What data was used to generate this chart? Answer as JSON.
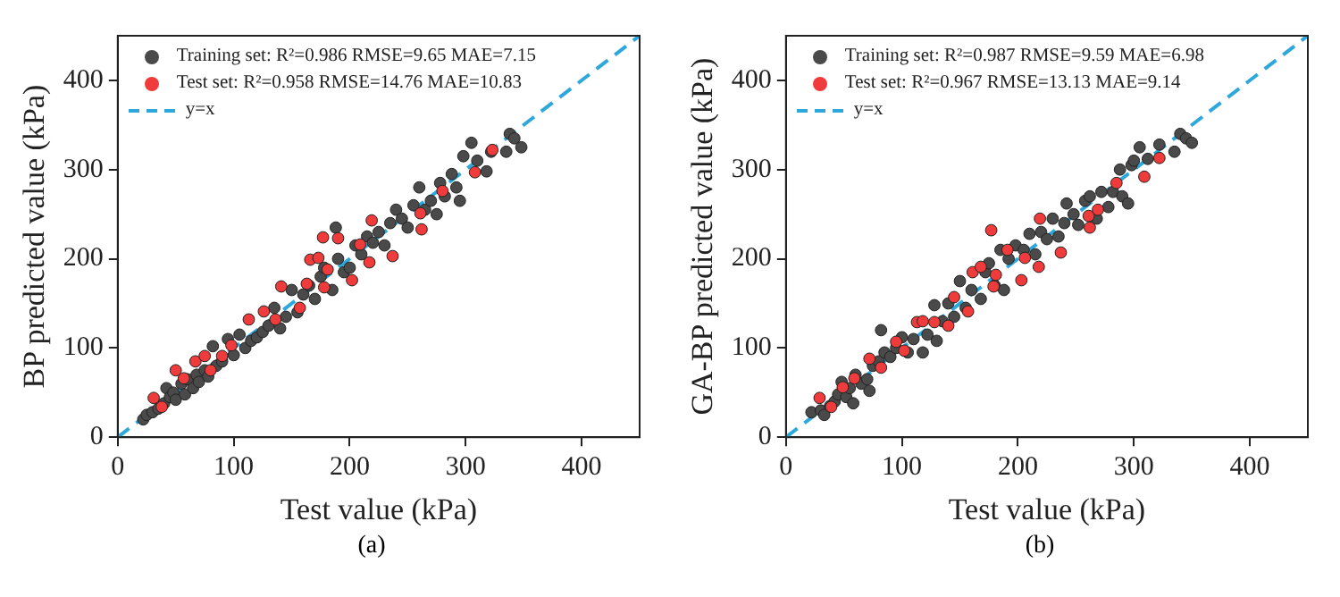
{
  "chart_data": [
    {
      "type": "scatter",
      "xlabel": "Test value (kPa)",
      "ylabel": "BP predicted value (kPa)",
      "xlim": [
        0,
        450
      ],
      "ylim": [
        0,
        450
      ],
      "xticks": [
        0,
        100,
        200,
        300,
        400
      ],
      "yticks": [
        0,
        100,
        200,
        300,
        400
      ],
      "grid": false,
      "legend": "top left",
      "annotations": [
        "(a)"
      ],
      "series": [
        {
          "name": "Training set: R²=0.986 RMSE=9.65 MAE=7.15",
          "marker": "circle",
          "color": "#4a4a4a",
          "x": [
            22,
            25,
            30,
            35,
            40,
            42,
            45,
            48,
            50,
            55,
            58,
            60,
            65,
            68,
            70,
            75,
            78,
            82,
            85,
            90,
            95,
            100,
            105,
            110,
            115,
            120,
            125,
            130,
            135,
            140,
            145,
            150,
            155,
            160,
            165,
            170,
            175,
            178,
            185,
            188,
            190,
            195,
            200,
            205,
            210,
            215,
            220,
            225,
            230,
            235,
            240,
            245,
            250,
            255,
            260,
            265,
            270,
            275,
            278,
            282,
            288,
            292,
            295,
            298,
            305,
            310,
            318,
            322,
            335,
            338,
            342,
            348
          ],
          "values": [
            20,
            25,
            28,
            32,
            38,
            55,
            45,
            50,
            42,
            60,
            48,
            65,
            55,
            70,
            62,
            75,
            68,
            102,
            80,
            85,
            110,
            92,
            115,
            100,
            108,
            112,
            118,
            125,
            145,
            122,
            135,
            165,
            140,
            160,
            170,
            155,
            180,
            190,
            165,
            235,
            200,
            185,
            190,
            215,
            205,
            225,
            218,
            230,
            215,
            240,
            255,
            245,
            235,
            260,
            280,
            255,
            265,
            250,
            285,
            270,
            295,
            280,
            265,
            315,
            330,
            310,
            298,
            320,
            320,
            340,
            335,
            325
          ]
        },
        {
          "name": "Test set: R²=0.958 RMSE=14.76 MAE=10.83",
          "marker": "circle",
          "color": "#ef3b3b",
          "x": [
            31,
            38,
            50,
            57,
            67,
            75,
            80,
            90,
            98,
            113,
            126,
            136,
            141,
            157,
            163,
            166,
            173,
            177,
            178,
            181,
            190,
            202,
            209,
            217,
            219,
            237,
            261,
            262,
            280,
            308,
            323
          ],
          "values": [
            44,
            34,
            75,
            66,
            85,
            91,
            75,
            91,
            103,
            132,
            141,
            132,
            169,
            145,
            172,
            199,
            201,
            224,
            168,
            188,
            223,
            176,
            216,
            196,
            243,
            203,
            251,
            233,
            276,
            297,
            322
          ]
        },
        {
          "name": "y=x",
          "type": "line",
          "color": "#2ea8dc",
          "line_style": "dashed",
          "x": [
            0,
            450
          ],
          "values": [
            0,
            450
          ]
        }
      ]
    },
    {
      "type": "scatter",
      "xlabel": "Test value (kPa)",
      "ylabel": "GA-BP predicted value (kPa)",
      "xlim": [
        0,
        450
      ],
      "ylim": [
        0,
        450
      ],
      "xticks": [
        0,
        100,
        200,
        300,
        400
      ],
      "yticks": [
        0,
        100,
        200,
        300,
        400
      ],
      "grid": false,
      "legend": "top left",
      "annotations": [
        "(b)"
      ],
      "series": [
        {
          "name": "Training set: R²=0.987 RMSE=9.59 MAE=6.98",
          "marker": "circle",
          "color": "#4a4a4a",
          "x": [
            22,
            30,
            33,
            38,
            42,
            45,
            48,
            52,
            55,
            58,
            60,
            65,
            70,
            72,
            75,
            80,
            82,
            85,
            90,
            95,
            100,
            105,
            110,
            118,
            122,
            128,
            130,
            135,
            140,
            145,
            150,
            155,
            160,
            168,
            172,
            175,
            180,
            185,
            188,
            192,
            198,
            205,
            210,
            215,
            220,
            225,
            230,
            235,
            240,
            242,
            248,
            252,
            258,
            262,
            268,
            272,
            278,
            282,
            288,
            290,
            295,
            298,
            300,
            305,
            312,
            322,
            335,
            340,
            345,
            350
          ],
          "values": [
            28,
            30,
            25,
            35,
            40,
            48,
            62,
            45,
            55,
            38,
            70,
            60,
            65,
            52,
            80,
            85,
            120,
            95,
            90,
            100,
            112,
            95,
            110,
            95,
            115,
            148,
            108,
            130,
            150,
            135,
            175,
            145,
            165,
            155,
            185,
            195,
            170,
            210,
            165,
            200,
            215,
            210,
            228,
            205,
            230,
            222,
            245,
            225,
            240,
            262,
            250,
            238,
            265,
            270,
            245,
            275,
            258,
            275,
            300,
            270,
            262,
            305,
            310,
            325,
            312,
            328,
            320,
            340,
            335,
            330
          ]
        },
        {
          "name": "Test set: R²=0.967 RMSE=13.13 MAE=9.14",
          "marker": "circle",
          "color": "#ef3b3b",
          "x": [
            29,
            39,
            49,
            59,
            72,
            82,
            95,
            102,
            113,
            118,
            128,
            140,
            145,
            157,
            161,
            168,
            177,
            179,
            181,
            191,
            203,
            206,
            218,
            219,
            237,
            261,
            262,
            269,
            285,
            309,
            322
          ],
          "values": [
            44,
            34,
            56,
            66,
            88,
            78,
            107,
            97,
            129,
            130,
            129,
            125,
            157,
            141,
            185,
            191,
            232,
            169,
            182,
            210,
            176,
            201,
            191,
            245,
            207,
            248,
            235,
            255,
            285,
            292,
            313
          ]
        },
        {
          "name": "y=x",
          "type": "line",
          "color": "#2ea8dc",
          "line_style": "dashed",
          "x": [
            0,
            450
          ],
          "values": [
            0,
            450
          ]
        }
      ]
    }
  ]
}
